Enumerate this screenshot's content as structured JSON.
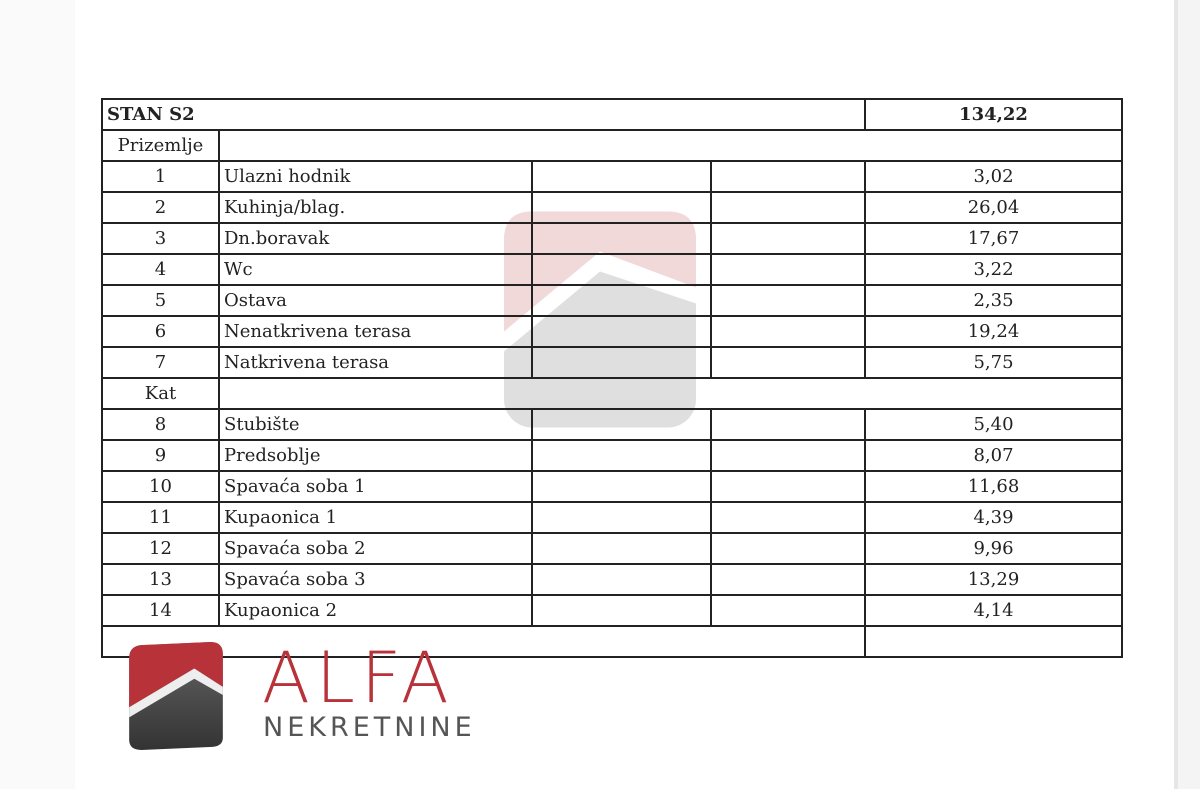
{
  "title": "STAN S2",
  "total": "134,22",
  "sections": [
    {
      "label": "Prizemlje",
      "rows": [
        {
          "no": "1",
          "name": "Ulazni hodnik",
          "area": "3,02"
        },
        {
          "no": "2",
          "name": "Kuhinja/blag.",
          "area": "26,04"
        },
        {
          "no": "3",
          "name": "Dn.boravak",
          "area": "17,67"
        },
        {
          "no": "4",
          "name": "Wc",
          "area": "3,22"
        },
        {
          "no": "5",
          "name": "Ostava",
          "area": "2,35"
        },
        {
          "no": "6",
          "name": "Nenatkrivena terasa",
          "area": "19,24"
        },
        {
          "no": "7",
          "name": "Natkrivena terasa",
          "area": "5,75"
        }
      ]
    },
    {
      "label": "Kat",
      "rows": [
        {
          "no": "8",
          "name": "Stubište",
          "area": "5,40"
        },
        {
          "no": "9",
          "name": "Predsoblje",
          "area": "8,07"
        },
        {
          "no": "10",
          "name": "Spavaća soba 1",
          "area": "11,68"
        },
        {
          "no": "11",
          "name": "Kupaonica 1",
          "area": "4,39"
        },
        {
          "no": "12",
          "name": "Spavaća soba 2",
          "area": "9,96"
        },
        {
          "no": "13",
          "name": "Spavaća soba 3",
          "area": "13,29"
        },
        {
          "no": "14",
          "name": "Kupaonica 2",
          "area": "4,14"
        }
      ]
    }
  ],
  "logo": {
    "brand": "ALFA",
    "subtitle": "NEKRETNINE",
    "colors": {
      "red": "#b8323a",
      "gray": "#555555"
    }
  }
}
